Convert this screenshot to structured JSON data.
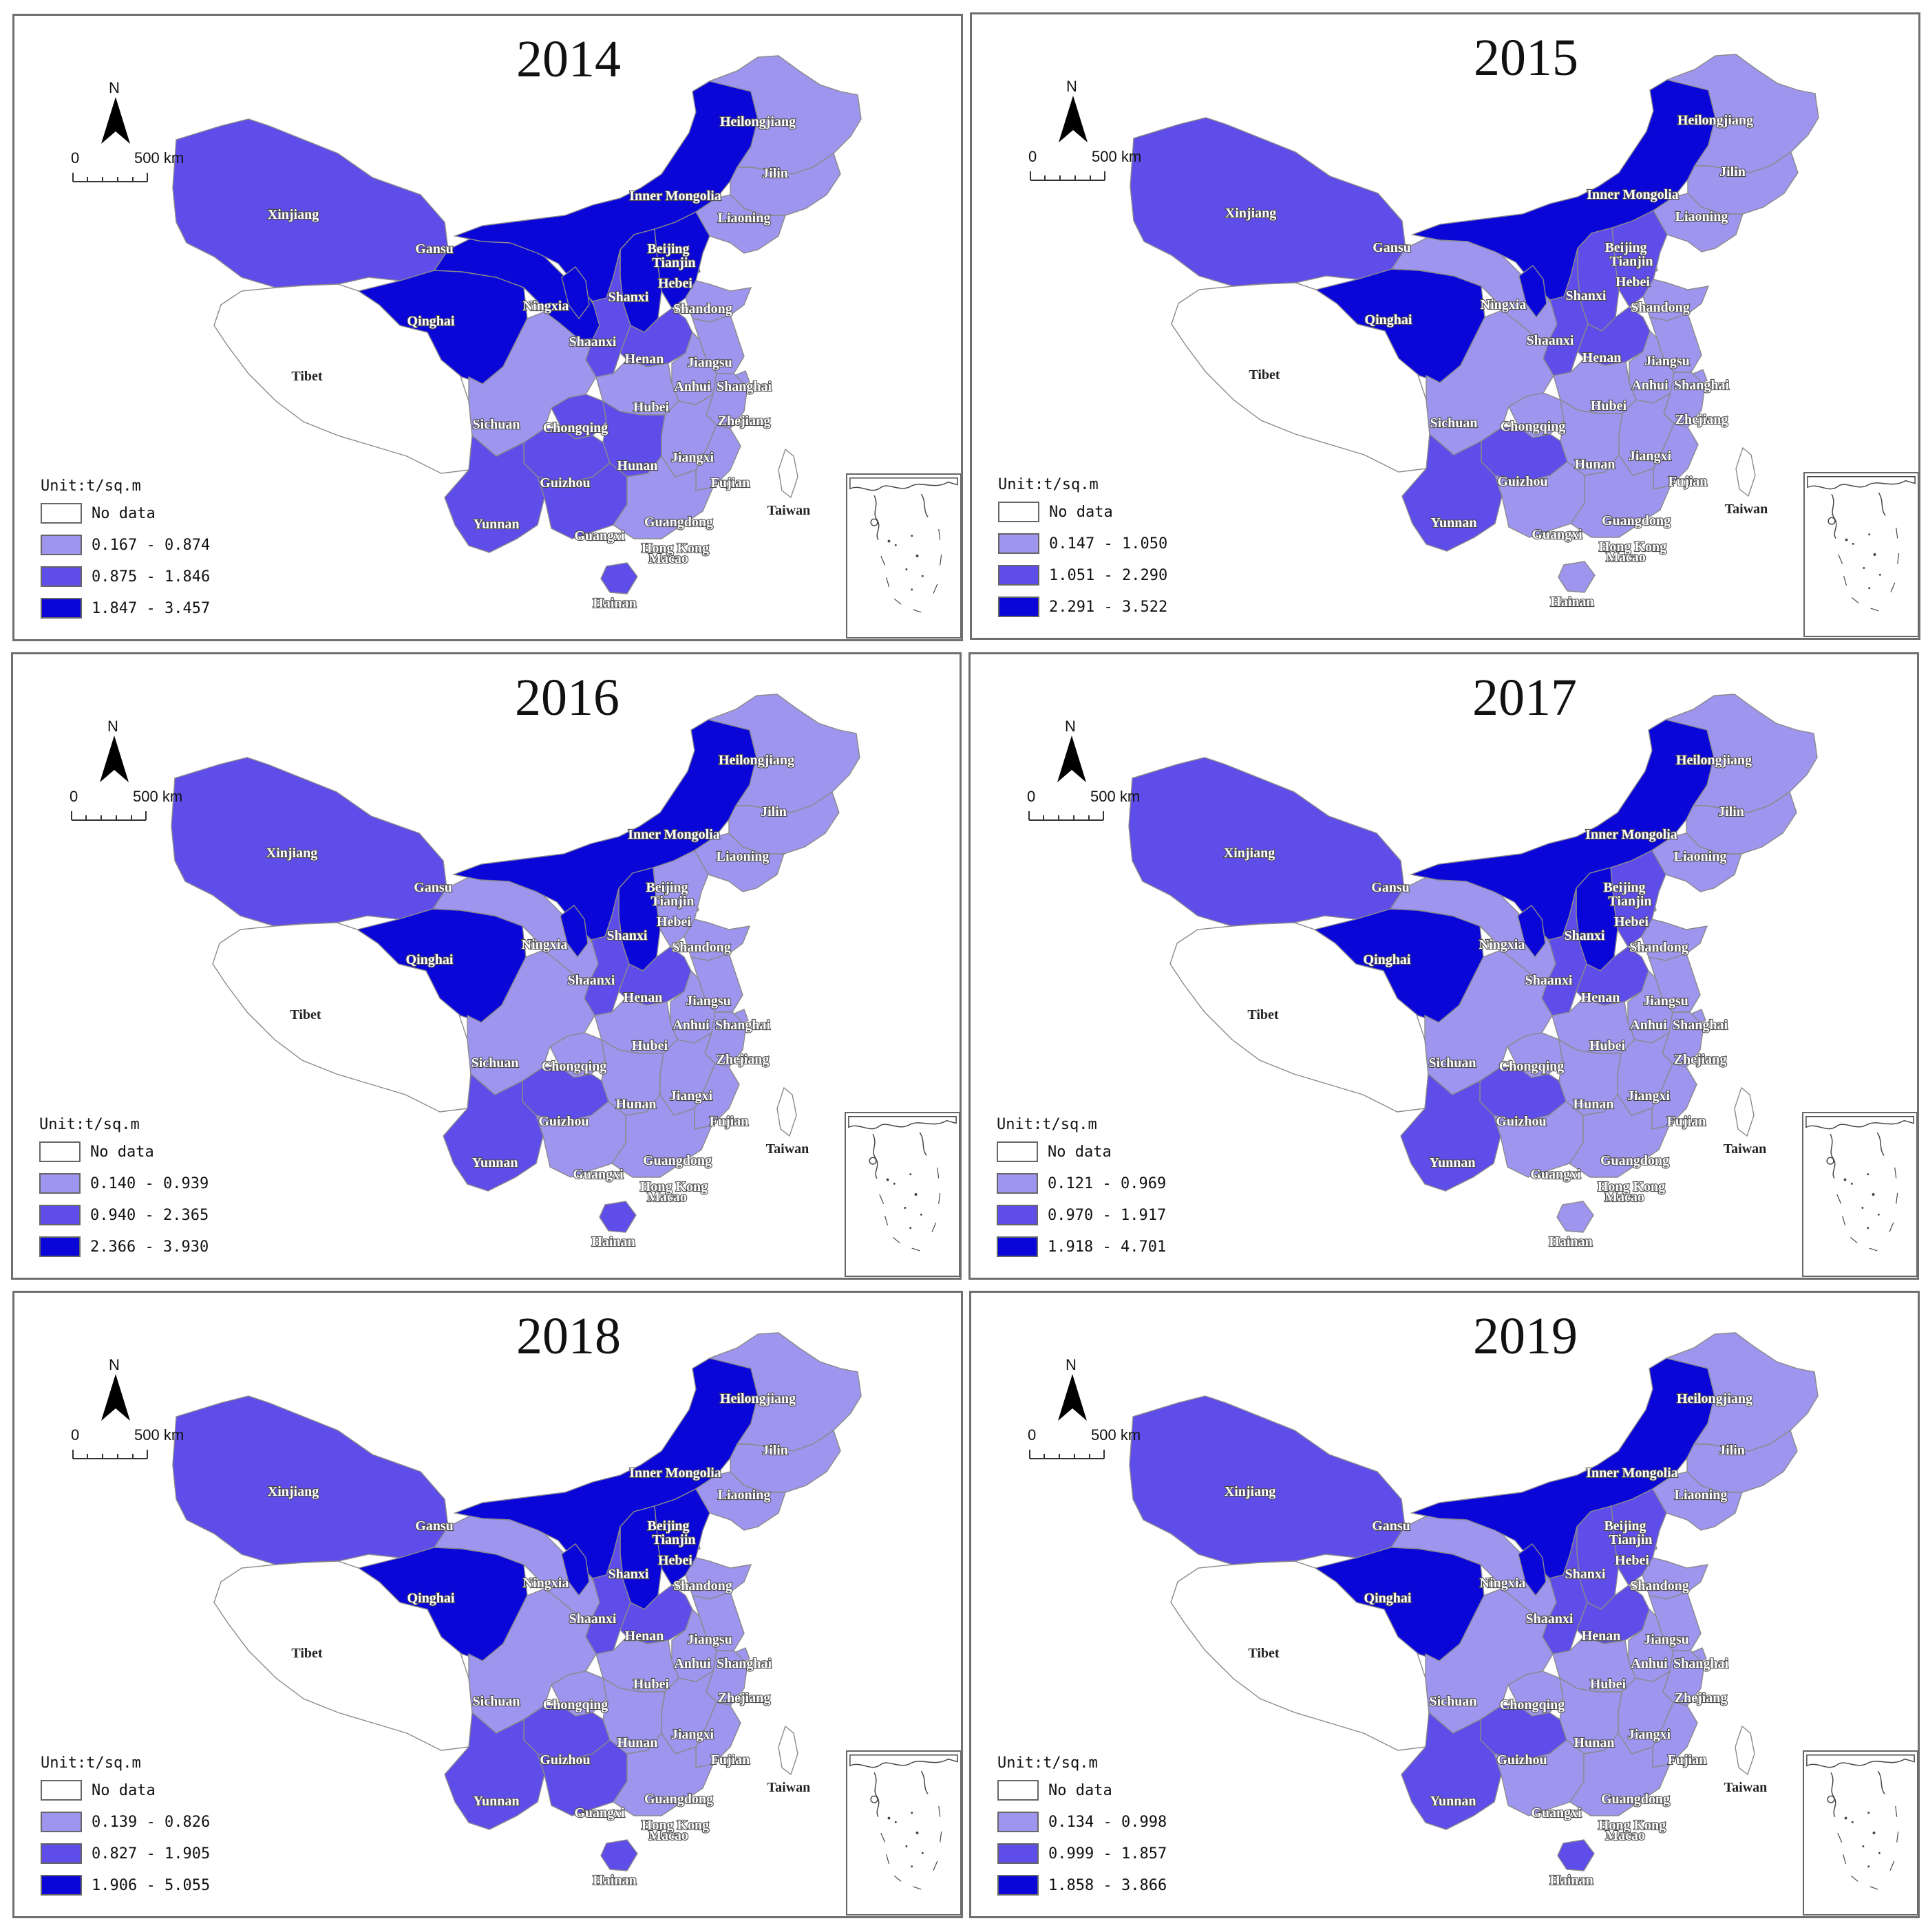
{
  "colors": {
    "no_data": "#ffffff",
    "class1": "#9d95ee",
    "class2": "#5e4de9",
    "class3": "#0a06d8",
    "boundary": "#8a8a8a"
  },
  "legend_unit": "Unit:t/sq.m",
  "no_data_label": "No data",
  "north_label": "N",
  "scale_zero": "0",
  "scale_distance": "500 km",
  "labels": {
    "Heilongjiang": "Heilongjiang",
    "Jilin": "Jilin",
    "Liaoning": "Liaoning",
    "InnerMongolia": "Inner Mongolia",
    "Xinjiang": "Xinjiang",
    "Gansu": "Gansu",
    "Beijing": "Beijing",
    "Tianjin": "Tianjin",
    "Hebei": "Hebei",
    "Shanxi": "Shanxi",
    "Ningxia": "Ningxia",
    "Qinghai": "Qinghai",
    "Shandong": "Shandong",
    "Shaanxi": "Shaanxi",
    "Henan": "Henan",
    "Jiangsu": "Jiangsu",
    "Anhui": "Anhui",
    "Shanghai": "Shanghai",
    "Tibet": "Tibet",
    "Hubei": "Hubei",
    "Sichuan": "Sichuan",
    "Chongqing": "Chongqing",
    "Zhejiang": "Zhejiang",
    "Hunan": "Hunan",
    "Jiangxi": "Jiangxi",
    "Guizhou": "Guizhou",
    "Fujian": "Fujian",
    "Taiwan": "Taiwan",
    "Yunnan": "Yunnan",
    "Guangdong": "Guangdong",
    "Guangxi": "Guangxi",
    "HongKong": "Hong Kong",
    "Macao": "Macao",
    "Hainan": "Hainan"
  },
  "panels": [
    {
      "year": "2014",
      "legend": [
        "0.167 - 0.874",
        "0.875 - 1.846",
        "1.847 - 3.457"
      ],
      "classes": {
        "Heilongjiang": 1,
        "Jilin": 1,
        "Liaoning": 1,
        "InnerMongolia": 3,
        "Xinjiang": 2,
        "Gansu": 3,
        "Ningxia": 3,
        "Qinghai": 3,
        "Tibet": 0,
        "Beijing": 3,
        "Tianjin": 3,
        "Hebei": 3,
        "Shanxi": 3,
        "Shandong": 1,
        "Shaanxi": 2,
        "Henan": 2,
        "Jiangsu": 1,
        "Anhui": 1,
        "Shanghai": 1,
        "Hubei": 1,
        "Sichuan": 1,
        "Chongqing": 2,
        "Zhejiang": 1,
        "Hunan": 2,
        "Jiangxi": 1,
        "Guizhou": 2,
        "Fujian": 1,
        "Yunnan": 2,
        "Guangdong": 1,
        "Guangxi": 2,
        "Hainan": 2,
        "Taiwan": 0
      }
    },
    {
      "year": "2015",
      "legend": [
        "0.147 - 1.050",
        "1.051 - 2.290",
        "2.291 - 3.522"
      ],
      "classes": {
        "Heilongjiang": 1,
        "Jilin": 1,
        "Liaoning": 1,
        "InnerMongolia": 3,
        "Xinjiang": 2,
        "Gansu": 1,
        "Ningxia": 3,
        "Qinghai": 3,
        "Tibet": 0,
        "Beijing": 1,
        "Tianjin": 1,
        "Hebei": 2,
        "Shanxi": 2,
        "Shandong": 1,
        "Shaanxi": 2,
        "Henan": 2,
        "Jiangsu": 1,
        "Anhui": 1,
        "Shanghai": 1,
        "Hubei": 1,
        "Sichuan": 1,
        "Chongqing": 1,
        "Zhejiang": 1,
        "Hunan": 1,
        "Jiangxi": 1,
        "Guizhou": 2,
        "Fujian": 1,
        "Yunnan": 2,
        "Guangdong": 1,
        "Guangxi": 1,
        "Hainan": 1,
        "Taiwan": 0
      }
    },
    {
      "year": "2016",
      "legend": [
        "0.140 - 0.939",
        "0.940 - 2.365",
        "2.366 - 3.930"
      ],
      "classes": {
        "Heilongjiang": 1,
        "Jilin": 1,
        "Liaoning": 1,
        "InnerMongolia": 3,
        "Xinjiang": 2,
        "Gansu": 1,
        "Ningxia": 3,
        "Qinghai": 3,
        "Tibet": 0,
        "Beijing": 1,
        "Tianjin": 1,
        "Hebei": 1,
        "Shanxi": 3,
        "Shandong": 1,
        "Shaanxi": 2,
        "Henan": 2,
        "Jiangsu": 1,
        "Anhui": 1,
        "Shanghai": 1,
        "Hubei": 1,
        "Sichuan": 1,
        "Chongqing": 1,
        "Zhejiang": 1,
        "Hunan": 1,
        "Jiangxi": 1,
        "Guizhou": 2,
        "Fujian": 1,
        "Yunnan": 2,
        "Guangdong": 1,
        "Guangxi": 1,
        "Hainan": 2,
        "Taiwan": 0
      }
    },
    {
      "year": "2017",
      "legend": [
        "0.121 - 0.969",
        "0.970 - 1.917",
        "1.918 - 4.701"
      ],
      "classes": {
        "Heilongjiang": 1,
        "Jilin": 1,
        "Liaoning": 1,
        "InnerMongolia": 3,
        "Xinjiang": 2,
        "Gansu": 1,
        "Ningxia": 3,
        "Qinghai": 3,
        "Tibet": 0,
        "Beijing": 1,
        "Tianjin": 1,
        "Hebei": 2,
        "Shanxi": 3,
        "Shandong": 1,
        "Shaanxi": 2,
        "Henan": 2,
        "Jiangsu": 1,
        "Anhui": 1,
        "Shanghai": 1,
        "Hubei": 1,
        "Sichuan": 1,
        "Chongqing": 1,
        "Zhejiang": 1,
        "Hunan": 1,
        "Jiangxi": 1,
        "Guizhou": 2,
        "Fujian": 1,
        "Yunnan": 2,
        "Guangdong": 1,
        "Guangxi": 1,
        "Hainan": 1,
        "Taiwan": 0
      }
    },
    {
      "year": "2018",
      "legend": [
        "0.139 - 0.826",
        "0.827 - 1.905",
        "1.906 - 5.055"
      ],
      "classes": {
        "Heilongjiang": 1,
        "Jilin": 1,
        "Liaoning": 1,
        "InnerMongolia": 3,
        "Xinjiang": 2,
        "Gansu": 1,
        "Ningxia": 3,
        "Qinghai": 3,
        "Tibet": 0,
        "Beijing": 1,
        "Tianjin": 1,
        "Hebei": 3,
        "Shanxi": 3,
        "Shandong": 1,
        "Shaanxi": 2,
        "Henan": 2,
        "Jiangsu": 1,
        "Anhui": 1,
        "Shanghai": 1,
        "Hubei": 1,
        "Sichuan": 1,
        "Chongqing": 1,
        "Zhejiang": 1,
        "Hunan": 1,
        "Jiangxi": 1,
        "Guizhou": 2,
        "Fujian": 1,
        "Yunnan": 2,
        "Guangdong": 1,
        "Guangxi": 2,
        "Hainan": 2,
        "Taiwan": 0
      }
    },
    {
      "year": "2019",
      "legend": [
        "0.134 - 0.998",
        "0.999 - 1.857",
        "1.858 - 3.866"
      ],
      "classes": {
        "Heilongjiang": 1,
        "Jilin": 1,
        "Liaoning": 1,
        "InnerMongolia": 3,
        "Xinjiang": 2,
        "Gansu": 1,
        "Ningxia": 3,
        "Qinghai": 3,
        "Tibet": 0,
        "Beijing": 1,
        "Tianjin": 1,
        "Hebei": 2,
        "Shanxi": 2,
        "Shandong": 1,
        "Shaanxi": 2,
        "Henan": 2,
        "Jiangsu": 1,
        "Anhui": 1,
        "Shanghai": 1,
        "Hubei": 1,
        "Sichuan": 1,
        "Chongqing": 1,
        "Zhejiang": 1,
        "Hunan": 1,
        "Jiangxi": 1,
        "Guizhou": 2,
        "Fujian": 1,
        "Yunnan": 2,
        "Guangdong": 1,
        "Guangxi": 1,
        "Hainan": 2,
        "Taiwan": 0
      }
    }
  ]
}
